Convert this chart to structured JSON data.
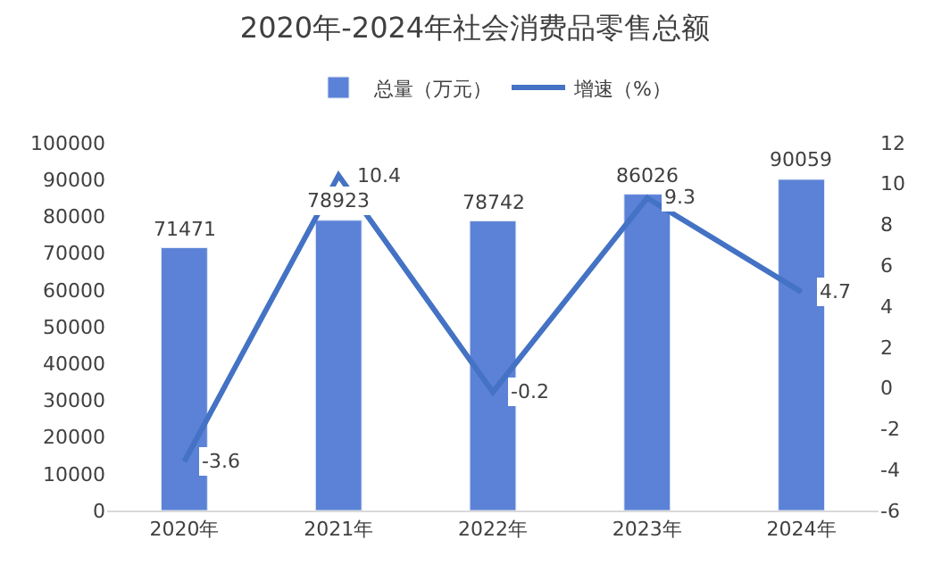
{
  "chart_data": {
    "type": "bar",
    "title": "2020年-2024年社会消费品零售总额",
    "categories": [
      "2020年",
      "2021年",
      "2022年",
      "2023年",
      "2024年"
    ],
    "series": [
      {
        "name": "总量（万元）",
        "color": "#5b82d6",
        "values": [
          71471,
          78923,
          78742,
          86026,
          90059
        ]
      },
      {
        "name": "增速（%）",
        "type": "line",
        "axis": "y2",
        "color": "#4472c4",
        "values": [
          -3.6,
          10.4,
          -0.2,
          9.3,
          4.7
        ]
      }
    ],
    "ylim": [
      0,
      100000
    ],
    "yticks": [
      0,
      10000,
      20000,
      30000,
      40000,
      50000,
      60000,
      70000,
      80000,
      90000,
      100000
    ],
    "y2lim": [
      -6,
      12
    ],
    "y2ticks": [
      -6,
      -4,
      -2,
      0,
      2,
      4,
      6,
      8,
      10,
      12
    ],
    "data_labels": true,
    "legend": "top",
    "marker": "none",
    "line_style": "solid"
  }
}
